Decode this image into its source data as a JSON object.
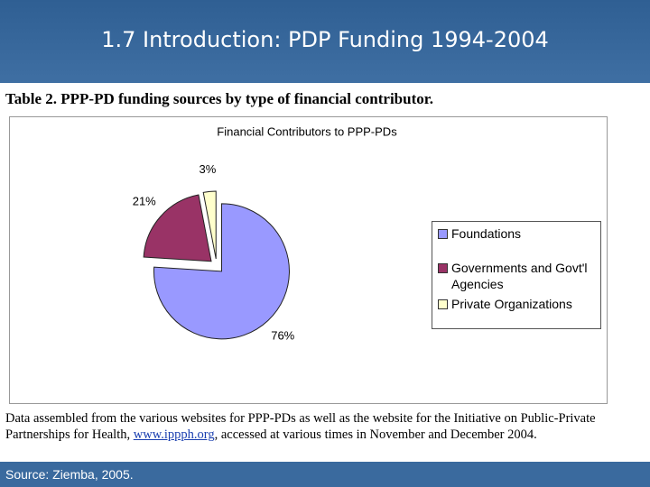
{
  "header": {
    "title": "1.7 Introduction: PDP Funding 1994-2004"
  },
  "caption": "Table 2. PPP-PD funding sources by type of financial contributor.",
  "chart_data": {
    "type": "pie",
    "title": "Financial Contributors to PPP-PDs",
    "categories": [
      "Foundations",
      "Governments and Govt'l Agencies",
      "Private Organizations"
    ],
    "values": [
      76,
      21,
      3
    ],
    "value_labels": [
      "76%",
      "21%",
      "3%"
    ],
    "colors": [
      "#9999ff",
      "#993366",
      "#ffffcc"
    ],
    "legend": "right"
  },
  "note": {
    "text_1": "Data assembled from the various websites for PPP-PDs as well as the website for the Initiative on Public-Private Partnerships for Health,",
    "link": "www.ippph.org",
    "text_2": ", accessed at various times in November and December 2004."
  },
  "footer": {
    "source": "Source: Ziemba, 2005."
  }
}
